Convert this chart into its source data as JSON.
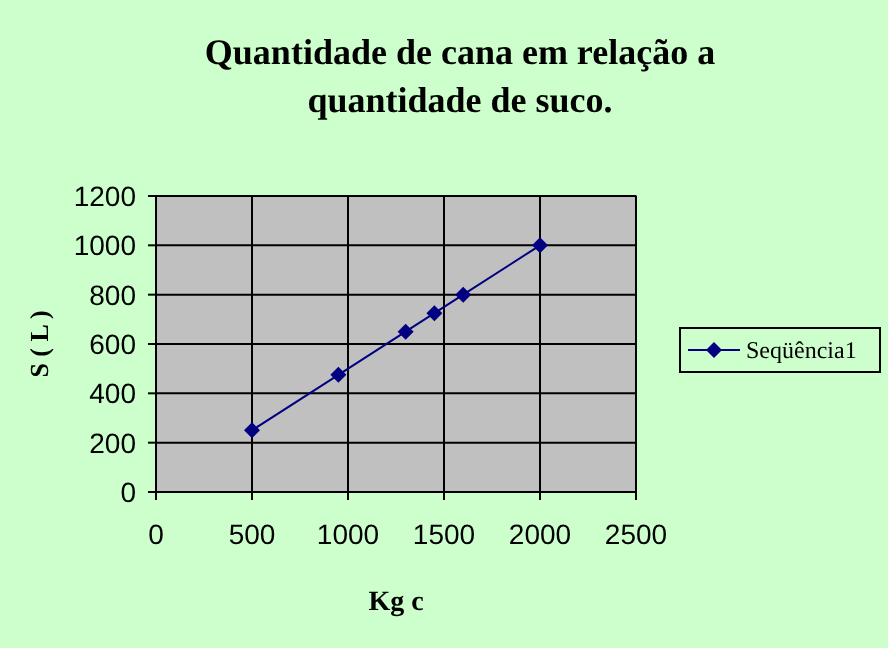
{
  "chart_data": {
    "type": "line",
    "title": "Quantidade de cana em relação a quantidade de suco.",
    "xlabel": "Kg c",
    "ylabel": "S ( L )",
    "x": [
      500,
      950,
      1300,
      1450,
      1600,
      2000
    ],
    "series": [
      {
        "name": "Seqüência1",
        "color": "#000080",
        "values": [
          250,
          475,
          650,
          725,
          800,
          1000
        ]
      }
    ],
    "xlim": [
      0,
      2500
    ],
    "xticks": [
      0,
      500,
      1000,
      1500,
      2000,
      2500
    ],
    "ylim": [
      0,
      1200
    ],
    "yticks": [
      0,
      200,
      400,
      600,
      800,
      1000,
      1200
    ],
    "grid": true,
    "legend": "right",
    "marker": "diamond",
    "line_style": "solid"
  }
}
